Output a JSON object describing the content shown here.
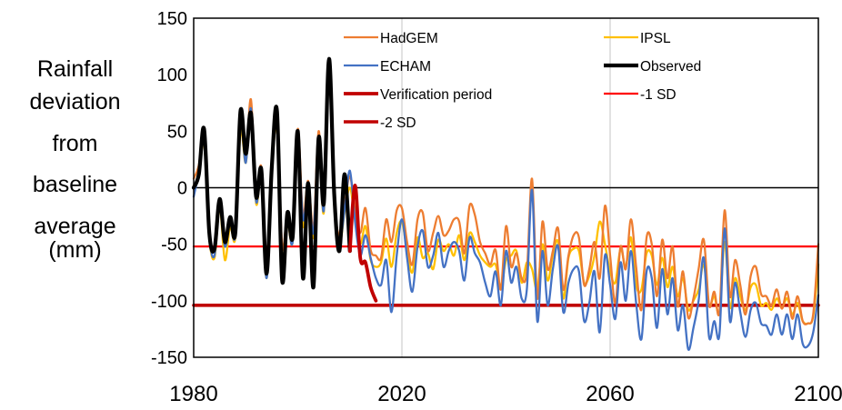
{
  "chart_data": {
    "type": "line",
    "title": "",
    "xlabel": "",
    "ylabel_lines": [
      "Rainfall",
      "deviation",
      "from",
      "baseline",
      "average",
      "(mm)"
    ],
    "xlim": [
      1980,
      2100
    ],
    "ylim": [
      -150,
      150
    ],
    "x_ticks": [
      1980,
      2020,
      2060,
      2100
    ],
    "y_ticks": [
      150,
      100,
      50,
      0,
      -50,
      -100,
      -150
    ],
    "grid": "vertical",
    "legend_position": "top-right",
    "series": [
      {
        "name": "HadGEM",
        "color": "#ED7D31",
        "x": [
          1980,
          1981,
          1982,
          1983,
          1984,
          1985,
          1986,
          1987,
          1988,
          1989,
          1990,
          1991,
          1992,
          1993,
          1994,
          1995,
          1996,
          1997,
          1998,
          1999,
          2000,
          2001,
          2002,
          2003,
          2004,
          2005,
          2006,
          2007,
          2008,
          2009,
          2010,
          2011,
          2012,
          2013,
          2014,
          2015,
          2016,
          2017,
          2018,
          2019,
          2020,
          2021,
          2022,
          2023,
          2024,
          2025,
          2026,
          2027,
          2028,
          2029,
          2030,
          2031,
          2032,
          2033,
          2034,
          2035,
          2036,
          2037,
          2038,
          2039,
          2040,
          2041,
          2042,
          2043,
          2044,
          2045,
          2046,
          2047,
          2048,
          2049,
          2050,
          2051,
          2052,
          2053,
          2054,
          2055,
          2056,
          2057,
          2058,
          2059,
          2060,
          2061,
          2062,
          2063,
          2064,
          2065,
          2066,
          2067,
          2068,
          2069,
          2070,
          2071,
          2072,
          2073,
          2074,
          2075,
          2076,
          2077,
          2078,
          2079,
          2080,
          2081,
          2082,
          2083,
          2084,
          2085,
          2086,
          2087,
          2088,
          2089,
          2090,
          2091,
          2092,
          2093,
          2094,
          2095,
          2096,
          2097,
          2098,
          2099,
          2100
        ],
        "y": [
          8,
          20,
          48,
          -38,
          -52,
          -10,
          -46,
          -27,
          -38,
          64,
          28,
          78,
          -6,
          18,
          -74,
          20,
          65,
          -52,
          -22,
          -42,
          52,
          -24,
          6,
          -36,
          50,
          -12,
          112,
          -8,
          -42,
          -15,
          10,
          -20,
          -40,
          -18,
          -55,
          -60,
          -62,
          -28,
          -48,
          -20,
          -18,
          -48,
          -68,
          -28,
          -22,
          -56,
          -40,
          -25,
          -42,
          -38,
          -28,
          -30,
          -58,
          -16,
          -24,
          -48,
          -58,
          -68,
          -55,
          -90,
          -34,
          -70,
          -58,
          -80,
          -74,
          8,
          -98,
          -30,
          -72,
          -56,
          -36,
          -90,
          -60,
          -42,
          -44,
          -86,
          -72,
          -48,
          -80,
          -16,
          -60,
          -102,
          -52,
          -72,
          -28,
          -70,
          -108,
          -44,
          -50,
          -96,
          -46,
          -80,
          -52,
          -105,
          -74,
          -115,
          -98,
          -72,
          -46,
          -104,
          -92,
          -110,
          -20,
          -96,
          -64,
          -86,
          -112,
          -78,
          -70,
          -94,
          -96,
          -104,
          -90,
          -107,
          -92,
          -116,
          -96,
          -118,
          -120,
          -112,
          -50
        ]
      },
      {
        "name": "IPSL",
        "color": "#FFC000",
        "x": [
          1980,
          1981,
          1982,
          1983,
          1984,
          1985,
          1986,
          1987,
          1988,
          1989,
          1990,
          1991,
          1992,
          1993,
          1994,
          1995,
          1996,
          1997,
          1998,
          1999,
          2000,
          2001,
          2002,
          2003,
          2004,
          2005,
          2006,
          2007,
          2008,
          2009,
          2010,
          2011,
          2012,
          2013,
          2014,
          2015,
          2016,
          2017,
          2018,
          2019,
          2020,
          2021,
          2022,
          2023,
          2024,
          2025,
          2026,
          2027,
          2028,
          2029,
          2030,
          2031,
          2032,
          2033,
          2034,
          2035,
          2036,
          2037,
          2038,
          2039,
          2040,
          2041,
          2042,
          2043,
          2044,
          2045,
          2046,
          2047,
          2048,
          2049,
          2050,
          2051,
          2052,
          2053,
          2054,
          2055,
          2056,
          2057,
          2058,
          2059,
          2060,
          2061,
          2062,
          2063,
          2064,
          2065,
          2066,
          2067,
          2068,
          2069,
          2070,
          2071,
          2072,
          2073,
          2074,
          2075,
          2076,
          2077,
          2078,
          2079,
          2080,
          2081,
          2082,
          2083,
          2084,
          2085,
          2086,
          2087,
          2088,
          2089,
          2090,
          2091,
          2092,
          2093,
          2094,
          2095,
          2096,
          2097,
          2098,
          2099,
          2100
        ],
        "y": [
          2,
          10,
          40,
          -44,
          -62,
          -18,
          -64,
          -34,
          -44,
          50,
          22,
          66,
          -14,
          10,
          -80,
          12,
          54,
          -60,
          -30,
          -48,
          42,
          -34,
          -4,
          -44,
          38,
          -22,
          100,
          -16,
          -50,
          -22,
          0,
          -28,
          -50,
          -34,
          -64,
          -70,
          -66,
          -45,
          -70,
          -40,
          -30,
          -56,
          -75,
          -44,
          -62,
          -58,
          -72,
          -46,
          -56,
          -50,
          -60,
          -42,
          -64,
          -40,
          -48,
          -60,
          -66,
          -70,
          -68,
          -88,
          -64,
          -60,
          -56,
          -84,
          -66,
          -72,
          -90,
          -50,
          -82,
          -60,
          -48,
          -98,
          -62,
          -54,
          -56,
          -84,
          -78,
          -60,
          -30,
          -50,
          -74,
          -84,
          -54,
          -70,
          -44,
          -86,
          -90,
          -58,
          -60,
          -86,
          -62,
          -88,
          -70,
          -96,
          -80,
          -108,
          -100,
          -90,
          -68,
          -104,
          -96,
          -110,
          -48,
          -106,
          -80,
          -96,
          -108,
          -88,
          -86,
          -104,
          -102,
          -108,
          -98,
          -106,
          -98,
          -112,
          -102,
          -118,
          -120,
          -114,
          -68
        ]
      },
      {
        "name": "ECHAM",
        "color": "#4472C4",
        "x": [
          1980,
          1981,
          1982,
          1983,
          1984,
          1985,
          1986,
          1987,
          1988,
          1989,
          1990,
          1991,
          1992,
          1993,
          1994,
          1995,
          1996,
          1997,
          1998,
          1999,
          2000,
          2001,
          2002,
          2003,
          2004,
          2005,
          2006,
          2007,
          2008,
          2009,
          2010,
          2011,
          2012,
          2013,
          2014,
          2015,
          2016,
          2017,
          2018,
          2019,
          2020,
          2021,
          2022,
          2023,
          2024,
          2025,
          2026,
          2027,
          2028,
          2029,
          2030,
          2031,
          2032,
          2033,
          2034,
          2035,
          2036,
          2037,
          2038,
          2039,
          2040,
          2041,
          2042,
          2043,
          2044,
          2045,
          2046,
          2047,
          2048,
          2049,
          2050,
          2051,
          2052,
          2053,
          2054,
          2055,
          2056,
          2057,
          2058,
          2059,
          2060,
          2061,
          2062,
          2063,
          2064,
          2065,
          2066,
          2067,
          2068,
          2069,
          2070,
          2071,
          2072,
          2073,
          2074,
          2075,
          2076,
          2077,
          2078,
          2079,
          2080,
          2081,
          2082,
          2083,
          2084,
          2085,
          2086,
          2087,
          2088,
          2089,
          2090,
          2091,
          2092,
          2093,
          2094,
          2095,
          2096,
          2097,
          2098,
          2099,
          2100
        ],
        "y": [
          -8,
          14,
          42,
          -42,
          -60,
          -14,
          -52,
          -30,
          -42,
          58,
          22,
          70,
          -12,
          14,
          -80,
          14,
          60,
          -62,
          -28,
          -48,
          44,
          -28,
          0,
          -40,
          42,
          -20,
          104,
          -12,
          -48,
          -20,
          15,
          -30,
          -60,
          -42,
          -62,
          -80,
          -86,
          -64,
          -110,
          -60,
          -28,
          -62,
          -92,
          -52,
          -38,
          -70,
          -60,
          -40,
          -70,
          -56,
          -48,
          -56,
          -82,
          -44,
          -58,
          -66,
          -84,
          -96,
          -74,
          -104,
          -56,
          -84,
          -70,
          -98,
          -90,
          -2,
          -118,
          -56,
          -104,
          -72,
          -52,
          -110,
          -84,
          -72,
          -74,
          -118,
          -102,
          -74,
          -128,
          -60,
          -86,
          -116,
          -66,
          -100,
          -56,
          -102,
          -134,
          -74,
          -80,
          -124,
          -72,
          -112,
          -80,
          -126,
          -104,
          -143,
          -124,
          -100,
          -62,
          -132,
          -118,
          -130,
          -36,
          -118,
          -84,
          -110,
          -132,
          -108,
          -102,
          -120,
          -122,
          -130,
          -112,
          -130,
          -112,
          -134,
          -112,
          -138,
          -140,
          -128,
          -95
        ]
      },
      {
        "name": "Observed",
        "color": "#000000",
        "x": [
          1980,
          1981,
          1982,
          1983,
          1984,
          1985,
          1986,
          1987,
          1988,
          1989,
          1990,
          1991,
          1992,
          1993,
          1994,
          1995,
          1996,
          1997,
          1998,
          1999,
          2000,
          2001,
          2002,
          2003,
          2004,
          2005,
          2006,
          2007,
          2008,
          2009,
          2010
        ],
        "y": [
          0,
          12,
          52,
          -40,
          -54,
          -10,
          -48,
          -26,
          -40,
          68,
          30,
          66,
          -8,
          16,
          -76,
          18,
          68,
          -82,
          -22,
          -44,
          50,
          -80,
          4,
          -88,
          44,
          -14,
          114,
          -6,
          -56,
          12,
          -56
        ]
      },
      {
        "name": "Verification period",
        "color": "#C00000",
        "x": [
          2010,
          2011,
          2012,
          2013,
          2014,
          2015
        ],
        "y": [
          -56,
          2,
          -62,
          -66,
          -88,
          -100
        ]
      },
      {
        "name": "-1 SD",
        "color": "#FF0000",
        "x": [
          1980,
          2100
        ],
        "y": [
          -52,
          -52
        ]
      },
      {
        "name": "-2 SD",
        "color": "#C00000",
        "x": [
          1980,
          2100
        ],
        "y": [
          -104,
          -104
        ]
      }
    ]
  }
}
